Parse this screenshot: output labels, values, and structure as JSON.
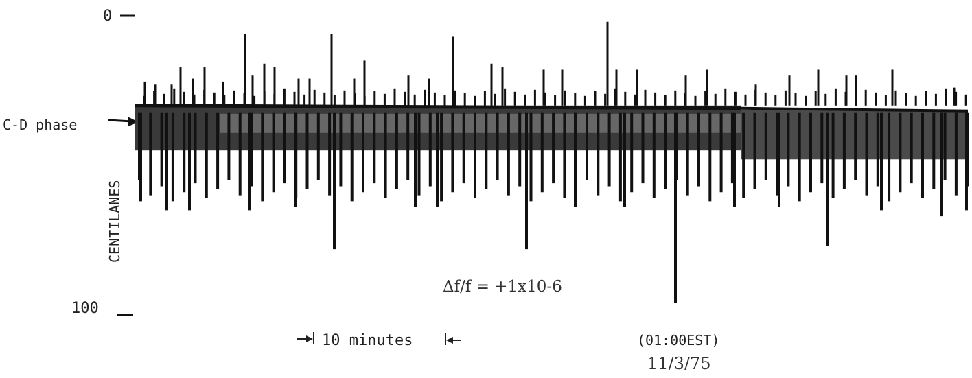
{
  "chart_data": {
    "type": "line",
    "title": "",
    "ylabel": "CENTILANES",
    "ylim": [
      0,
      100
    ],
    "y_tick_labels": [
      "0",
      "100"
    ],
    "reference_label": "C-D phase",
    "reference_level": 30,
    "annotations": {
      "frequency_offset": "Δf/f = +1x10-6",
      "time_scale": "10 minutes",
      "time_marker": "(01:00EST)",
      "date": "11/3/75"
    },
    "spikes": {
      "up": [
        {
          "x": 211,
          "y": 22
        },
        {
          "x": 226,
          "y": 23
        },
        {
          "x": 250,
          "y": 23
        },
        {
          "x": 263,
          "y": 17
        },
        {
          "x": 281,
          "y": 21
        },
        {
          "x": 298,
          "y": 17
        },
        {
          "x": 325,
          "y": 22
        },
        {
          "x": 357,
          "y": 6
        },
        {
          "x": 368,
          "y": 20
        },
        {
          "x": 385,
          "y": 16
        },
        {
          "x": 400,
          "y": 17
        },
        {
          "x": 435,
          "y": 21
        },
        {
          "x": 451,
          "y": 21
        },
        {
          "x": 483,
          "y": 6
        },
        {
          "x": 516,
          "y": 21
        },
        {
          "x": 531,
          "y": 15
        },
        {
          "x": 595,
          "y": 20
        },
        {
          "x": 625,
          "y": 21
        },
        {
          "x": 660,
          "y": 7
        },
        {
          "x": 716,
          "y": 16
        },
        {
          "x": 732,
          "y": 17
        },
        {
          "x": 792,
          "y": 18
        },
        {
          "x": 819,
          "y": 18
        },
        {
          "x": 885,
          "y": 2
        },
        {
          "x": 898,
          "y": 18
        },
        {
          "x": 928,
          "y": 18
        },
        {
          "x": 999,
          "y": 20
        },
        {
          "x": 1030,
          "y": 18
        },
        {
          "x": 1101,
          "y": 23
        },
        {
          "x": 1150,
          "y": 20
        },
        {
          "x": 1192,
          "y": 18
        },
        {
          "x": 1233,
          "y": 20
        },
        {
          "x": 1247,
          "y": 20
        },
        {
          "x": 1300,
          "y": 18
        },
        {
          "x": 1390,
          "y": 24
        }
      ],
      "down": [
        {
          "x": 205,
          "y": 62
        },
        {
          "x": 243,
          "y": 65
        },
        {
          "x": 276,
          "y": 65
        },
        {
          "x": 363,
          "y": 65
        },
        {
          "x": 430,
          "y": 64
        },
        {
          "x": 487,
          "y": 78
        },
        {
          "x": 605,
          "y": 64
        },
        {
          "x": 637,
          "y": 64
        },
        {
          "x": 767,
          "y": 78
        },
        {
          "x": 838,
          "y": 64
        },
        {
          "x": 910,
          "y": 64
        },
        {
          "x": 984,
          "y": 96
        },
        {
          "x": 1070,
          "y": 64
        },
        {
          "x": 1135,
          "y": 64
        },
        {
          "x": 1206,
          "y": 77
        },
        {
          "x": 1284,
          "y": 65
        },
        {
          "x": 1372,
          "y": 67
        },
        {
          "x": 1408,
          "y": 65
        }
      ]
    },
    "grid": false,
    "legend": "none"
  }
}
